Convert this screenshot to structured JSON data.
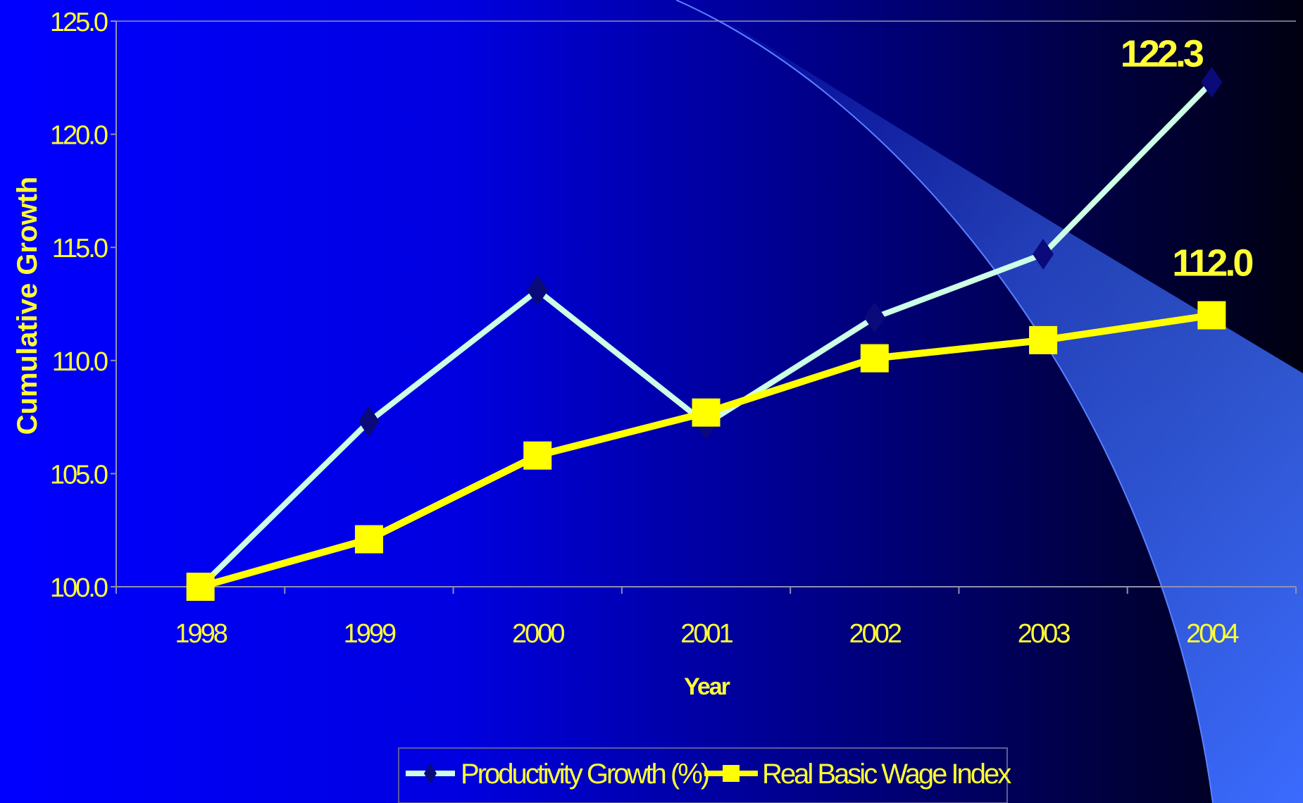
{
  "colors": {
    "bg_left": "#0000ff",
    "bg_right": "#000010",
    "arc": "#3b6bff",
    "text": "#ffff33",
    "productivity_line": "#ccffe6",
    "productivity_marker": "#0a0a7a",
    "wage": "#ffff00",
    "axis": "#9090b0"
  },
  "chart_data": {
    "type": "line",
    "x": [
      "1998",
      "1999",
      "2000",
      "2001",
      "2002",
      "2003",
      "2004"
    ],
    "ylim": [
      100,
      125
    ],
    "yticks": [
      100,
      105,
      110,
      115,
      120,
      125
    ],
    "ytick_labels": [
      "100.0",
      "105.0",
      "110.0",
      "115.0",
      "120.0",
      "125.0"
    ],
    "ylabel": "Cumulative Growth",
    "xlabel": "Year",
    "grid": false,
    "legend": "bottom",
    "series": [
      {
        "name": "Productivity Growth (%)",
        "marker": "diamond",
        "values": [
          100.0,
          107.3,
          113.1,
          107.2,
          111.9,
          114.7,
          122.3
        ]
      },
      {
        "name": "Real Basic Wage Index",
        "marker": "square",
        "values": [
          100.0,
          102.1,
          105.8,
          107.7,
          110.1,
          110.9,
          112.0
        ]
      }
    ],
    "annotations": [
      {
        "series": 0,
        "index": 6,
        "text": "122.3"
      },
      {
        "series": 1,
        "index": 6,
        "text": "112.0"
      }
    ]
  }
}
